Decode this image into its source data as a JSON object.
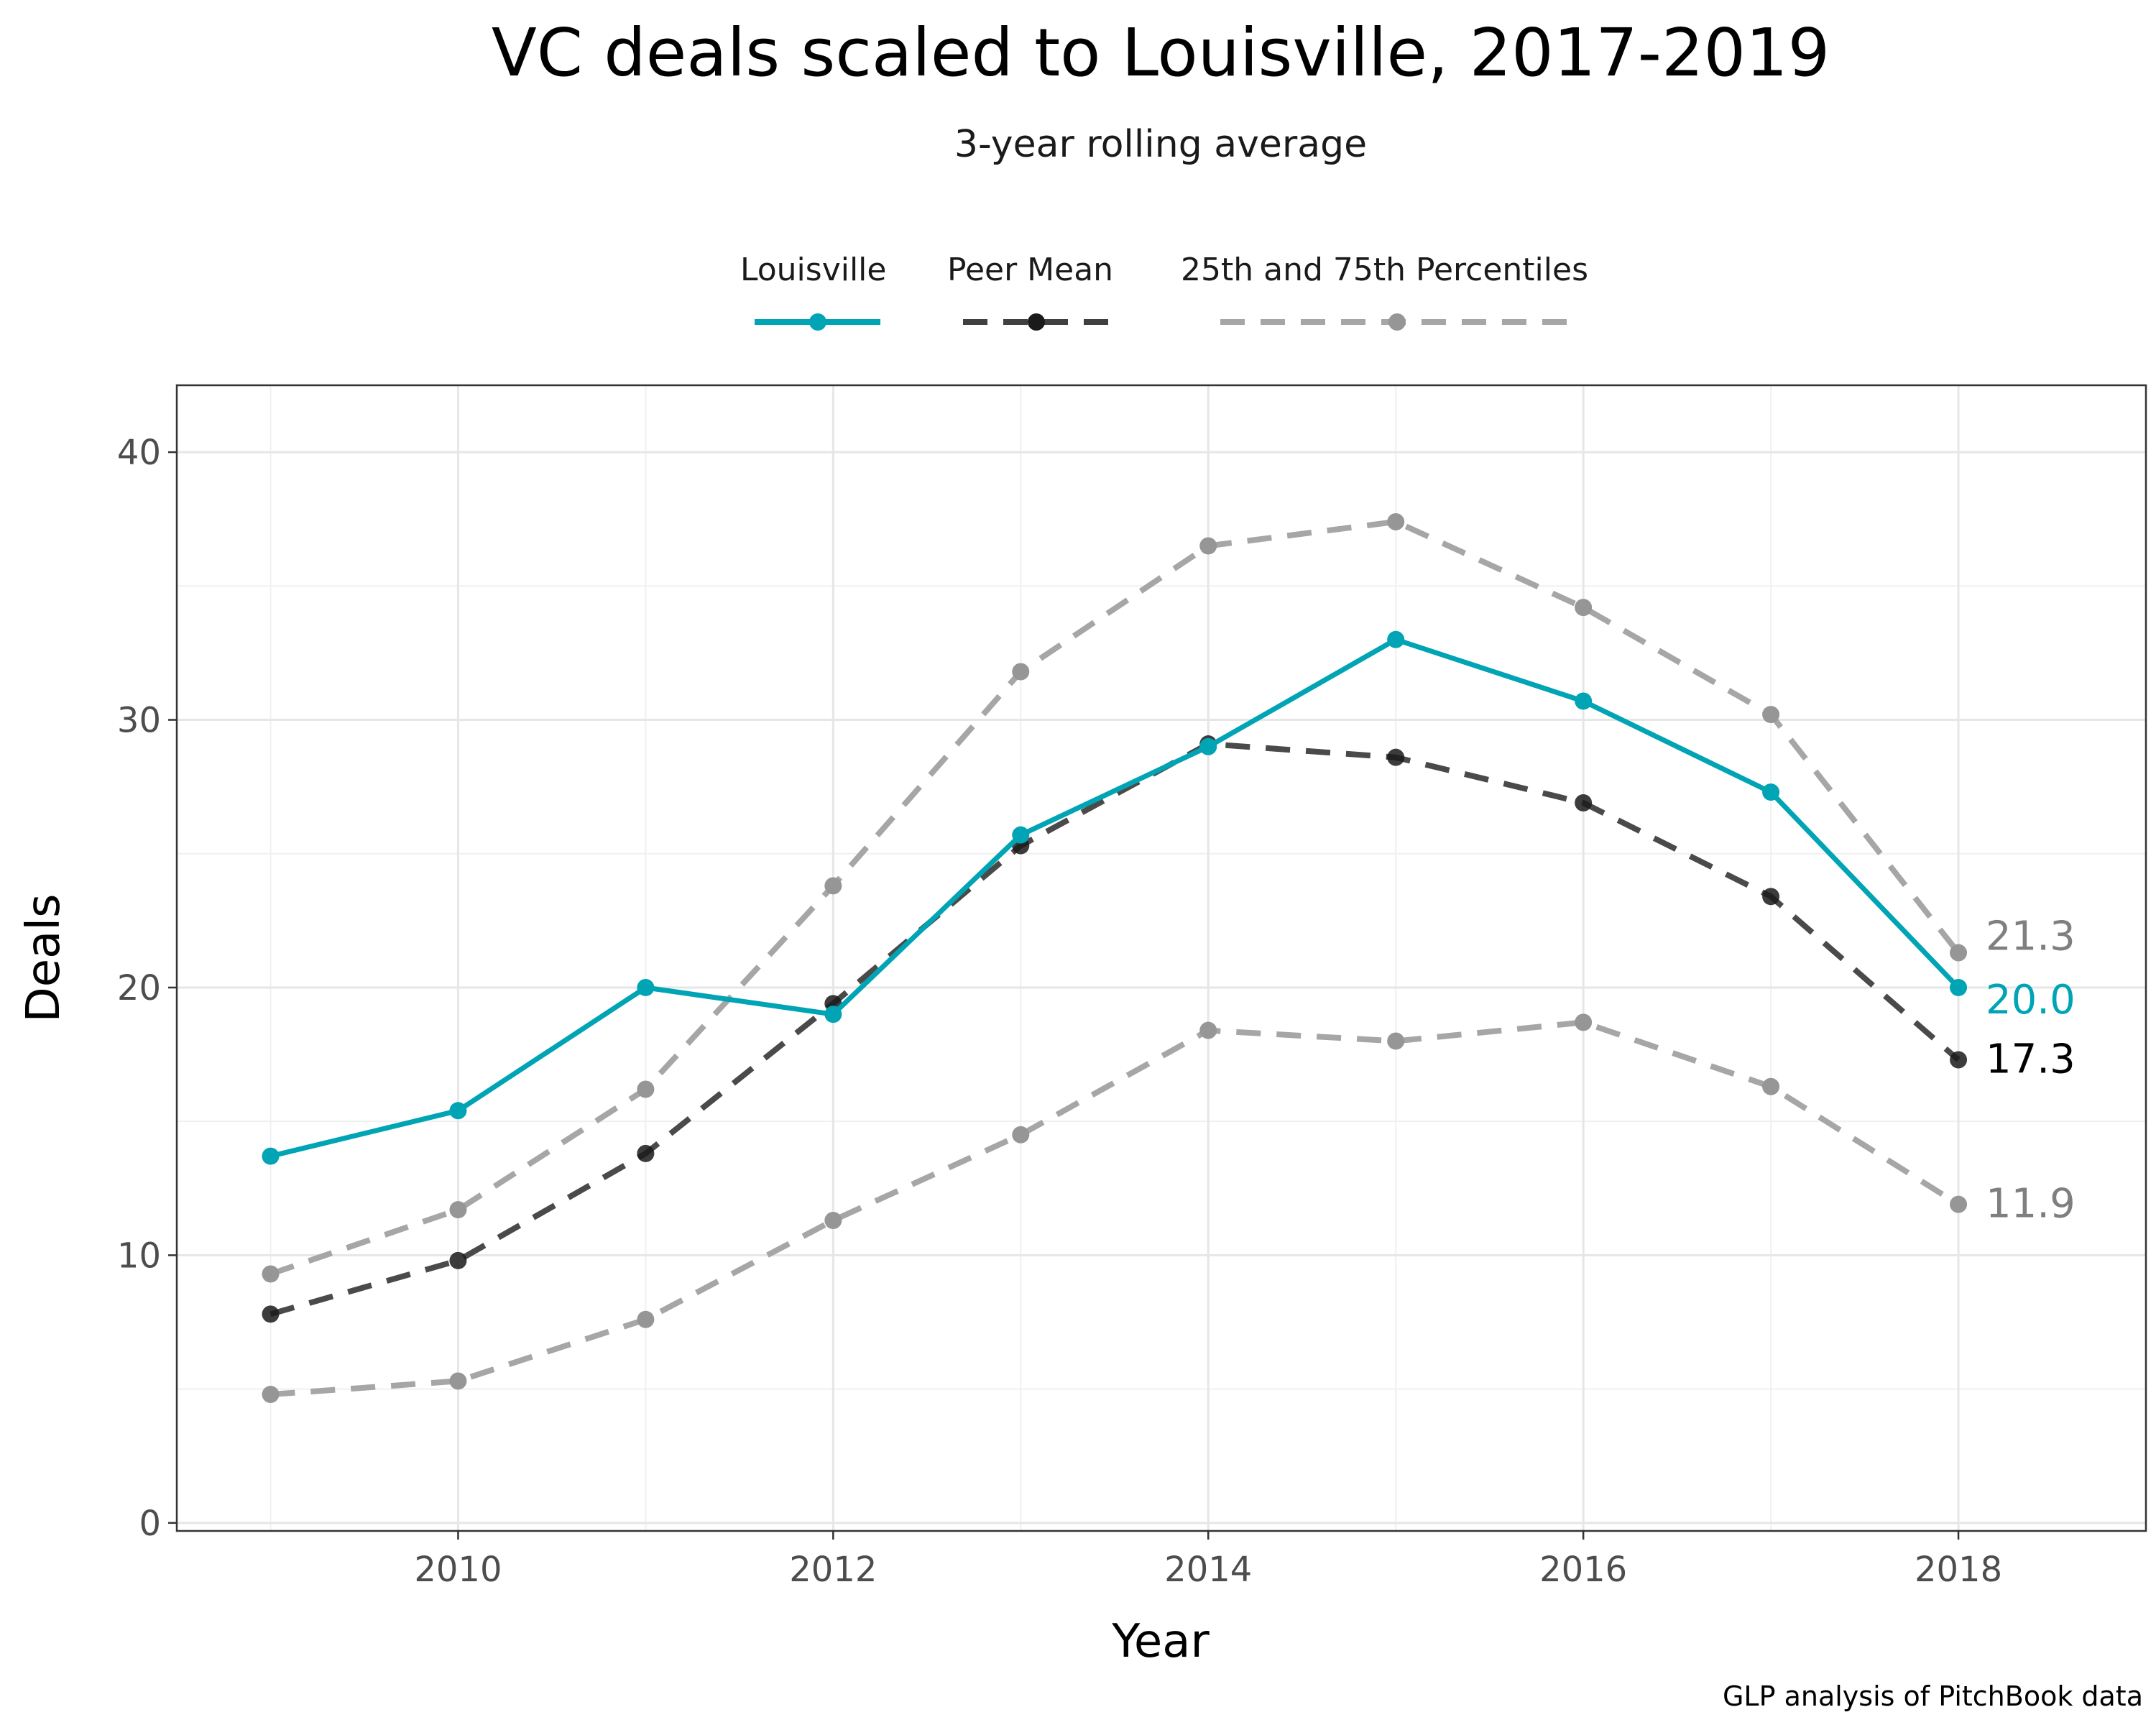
{
  "chart_data": {
    "type": "line",
    "title": "VC deals scaled to Louisville, 2017-2019",
    "subtitle": "3-year rolling average",
    "xlabel": "Year",
    "ylabel": "Deals",
    "caption": "GLP analysis of PitchBook data",
    "x": [
      2009,
      2010,
      2011,
      2012,
      2013,
      2014,
      2015,
      2016,
      2017,
      2018
    ],
    "xlim": [
      2008.5,
      2019.0
    ],
    "ylim": [
      -0.3,
      42.5
    ],
    "x_ticks": [
      2010,
      2012,
      2014,
      2016,
      2018
    ],
    "x_tick_labels": [
      "2010",
      "2012",
      "2014",
      "2016",
      "2018"
    ],
    "y_ticks": [
      0,
      10,
      20,
      30,
      40
    ],
    "y_tick_labels": [
      "0",
      "10",
      "20",
      "30",
      "40"
    ],
    "grid": true,
    "legend_position": "top",
    "series": [
      {
        "name": "25th and 75th Percentiles",
        "key": "p75",
        "color": "#a6a6a6",
        "dash": true,
        "show_in_legend": false,
        "end_label": "21.3",
        "end_label_color": "#7f7f7f",
        "values": [
          9.3,
          11.7,
          16.2,
          23.8,
          31.8,
          36.5,
          37.4,
          34.2,
          30.2,
          21.3
        ]
      },
      {
        "name": "25th and 75th Percentiles",
        "key": "p25",
        "color": "#a6a6a6",
        "dash": true,
        "show_in_legend": true,
        "end_label": "11.9",
        "end_label_color": "#7f7f7f",
        "values": [
          4.8,
          5.3,
          7.6,
          11.3,
          14.5,
          18.4,
          18.0,
          18.7,
          16.3,
          11.9
        ]
      },
      {
        "name": "Peer Mean",
        "key": "mean",
        "color": "#404040",
        "dash": true,
        "show_in_legend": true,
        "end_label": "17.3",
        "end_label_color": "#000000",
        "values": [
          7.8,
          9.8,
          13.8,
          19.4,
          25.3,
          29.1,
          28.6,
          26.9,
          23.4,
          17.3
        ]
      },
      {
        "name": "Louisville",
        "key": "louisville",
        "color": "#00a4b4",
        "dash": false,
        "show_in_legend": true,
        "end_label": "20.0",
        "end_label_color": "#00a4b4",
        "values": [
          13.7,
          15.4,
          20.0,
          19.0,
          25.7,
          29.0,
          33.0,
          30.7,
          27.3,
          20.0
        ]
      }
    ],
    "legend_order": [
      "louisville",
      "mean",
      "p25"
    ]
  }
}
